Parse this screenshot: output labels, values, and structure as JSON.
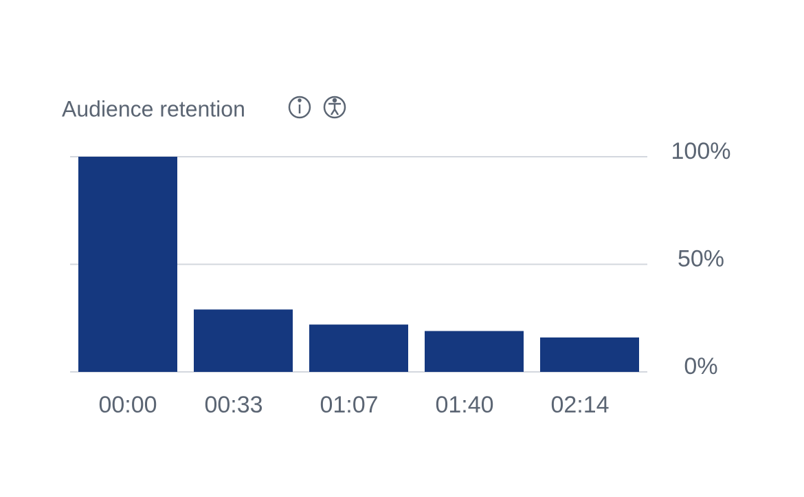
{
  "chart_data": {
    "type": "bar",
    "title": "Audience retention",
    "categories": [
      "00:00",
      "00:33",
      "01:07",
      "01:40",
      "02:14"
    ],
    "values": [
      100,
      29,
      22,
      19,
      16
    ],
    "color": "#15387f",
    "ylim": [
      0,
      100
    ],
    "yticks": [
      {
        "value": 0,
        "label": "0%"
      },
      {
        "value": 50,
        "label": "50%"
      },
      {
        "value": 100,
        "label": "100%"
      }
    ],
    "grid": true
  }
}
